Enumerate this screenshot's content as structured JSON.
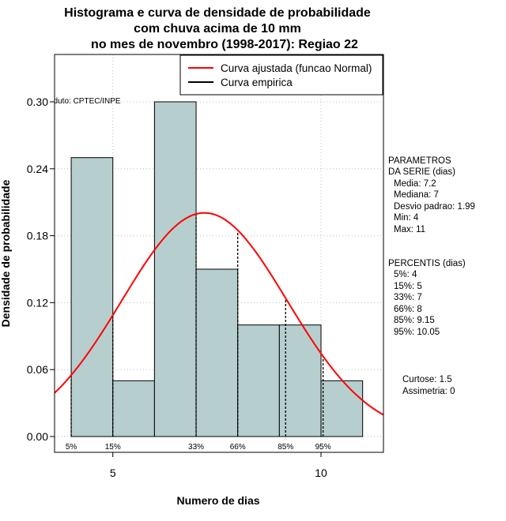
{
  "chart_data": {
    "type": "bar",
    "title_lines": [
      "Histograma e curva de densidade de probabilidade",
      "com chuva acima de 10 mm",
      "no mes de novembro (1998-2017): Regiao 22"
    ],
    "xlabel": "Numero de dias",
    "ylabel": "Densidade de probabilidade",
    "xlim": [
      3.6,
      11.5
    ],
    "ylim": [
      0,
      0.3
    ],
    "x_ticks": [
      5,
      10
    ],
    "x_tick_labels": [
      "5",
      "10"
    ],
    "y_ticks": [
      0.0,
      0.06,
      0.12,
      0.18,
      0.24,
      0.3
    ],
    "y_tick_labels": [
      "0.00",
      "0.06",
      "0.12",
      "0.18",
      "0.24",
      "0.30"
    ],
    "grid": true,
    "bins": [
      {
        "x0": 4,
        "x1": 5,
        "density": 0.25
      },
      {
        "x0": 5,
        "x1": 6,
        "density": 0.05
      },
      {
        "x0": 6,
        "x1": 7,
        "density": 0.3
      },
      {
        "x0": 7,
        "x1": 8,
        "density": 0.15
      },
      {
        "x0": 8,
        "x1": 9,
        "density": 0.1
      },
      {
        "x0": 9,
        "x1": 10,
        "density": 0.1
      },
      {
        "x0": 10,
        "x1": 11,
        "density": 0.05
      }
    ],
    "normal_fit": {
      "mean": 7.2,
      "sd": 1.99,
      "x_range": [
        3.6,
        11.5
      ]
    },
    "percentile_markers": [
      {
        "label": "5%",
        "x": 4
      },
      {
        "label": "15%",
        "x": 5
      },
      {
        "label": "33%",
        "x": 7
      },
      {
        "label": "66%",
        "x": 8
      },
      {
        "label": "85%",
        "x": 9.15
      },
      {
        "label": "95%",
        "x": 10.05
      }
    ],
    "legend": [
      {
        "label": "Curva ajustada (funcao Normal)",
        "color": "#ff0000"
      },
      {
        "label": "Curva empirica",
        "color": "#000000"
      }
    ],
    "colors": {
      "bar_fill": "#b7cece",
      "bar_stroke": "#000000",
      "curve": "#ff0000",
      "grid": "#bebebe"
    },
    "annotations": {
      "source": "Produto: CPTEC/INPE",
      "params_title_1": "PARAMETROS",
      "params_title_2": "DA SERIE (dias)",
      "params": [
        "Media: 7.2",
        "Mediana: 7",
        "Desvio padrao: 1.99",
        "Min: 4",
        "Max: 11"
      ],
      "percentiles_title": "PERCENTIS (dias)",
      "percentiles": [
        "5%: 4",
        "15%: 5",
        "33%: 7",
        "66%: 8",
        "85%: 9.15",
        "95%: 10.05"
      ],
      "curtose": "Curtose: 1.5",
      "assimetria": "Assimetria: 0"
    }
  }
}
